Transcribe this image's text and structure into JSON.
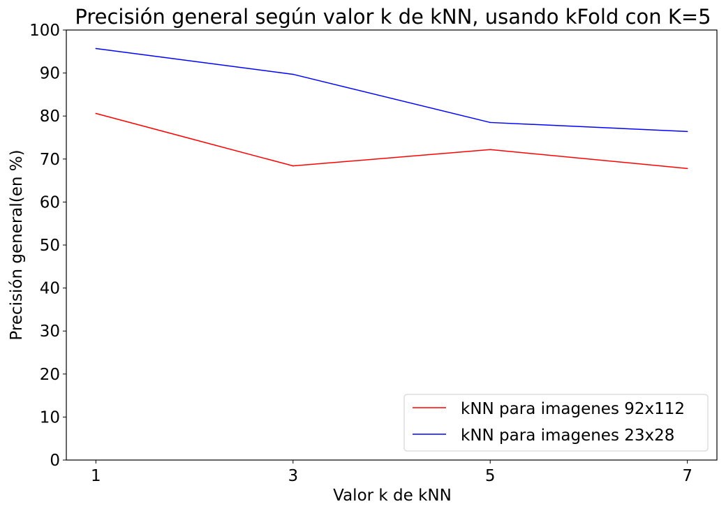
{
  "chart_data": {
    "type": "line",
    "title": "Precisión general según valor k de kNN, usando kFold con K=5",
    "xlabel": "Valor k de kNN",
    "ylabel": "Precisión general(en %)",
    "x": [
      1,
      3,
      5,
      7
    ],
    "x_ticks": [
      "1",
      "3",
      "5",
      "7"
    ],
    "y_ticks": [
      "0",
      "10",
      "20",
      "30",
      "40",
      "50",
      "60",
      "70",
      "80",
      "90",
      "100"
    ],
    "ylim": [
      0,
      100
    ],
    "grid": false,
    "legend_position": "lower-right",
    "series": [
      {
        "name": "kNN para imagenes 92x112",
        "color": "#ff0000",
        "values": [
          80.6,
          68.4,
          72.2,
          67.8
        ]
      },
      {
        "name": "kNN para imagenes 23x28",
        "color": "#0000ff",
        "values": [
          95.7,
          89.7,
          78.5,
          76.4
        ]
      }
    ]
  }
}
